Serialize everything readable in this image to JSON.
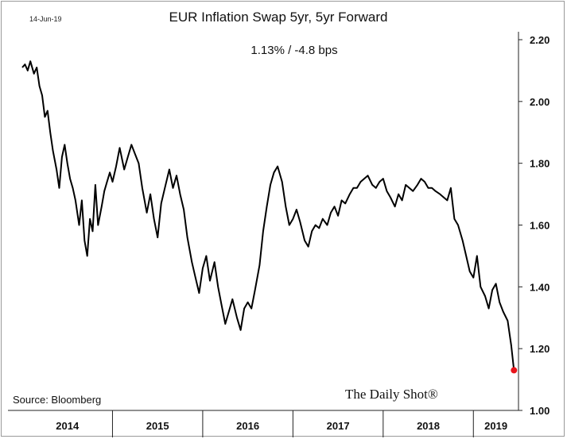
{
  "chart_data": {
    "type": "line",
    "date_stamp": "14-Jun-19",
    "title": "EUR Inflation Swap 5yr, 5yr Forward",
    "subtitle": "1.13%  /  -4.8 bps",
    "source": "Source: Bloomberg",
    "brand": "The Daily Shot®",
    "ylim": [
      1.0,
      2.2
    ],
    "y_ticks": [
      1.0,
      1.2,
      1.4,
      1.6,
      1.8,
      2.0,
      2.2
    ],
    "y_tick_labels": [
      "1.00",
      "1.20",
      "1.40",
      "1.60",
      "1.80",
      "2.00",
      "2.20"
    ],
    "y_axis_side": "right",
    "grid": false,
    "x_labels": [
      "2014",
      "2015",
      "2016",
      "2017",
      "2018",
      "2019"
    ],
    "x": [
      2014.0,
      2014.03,
      2014.06,
      2014.09,
      2014.13,
      2014.16,
      2014.19,
      2014.22,
      2014.25,
      2014.28,
      2014.31,
      2014.34,
      2014.38,
      2014.41,
      2014.44,
      2014.47,
      2014.5,
      2014.53,
      2014.56,
      2014.59,
      2014.63,
      2014.66,
      2014.69,
      2014.72,
      2014.75,
      2014.78,
      2014.81,
      2014.84,
      2014.88,
      2014.91,
      2014.94,
      2014.97,
      2015.0,
      2015.04,
      2015.08,
      2015.13,
      2015.17,
      2015.21,
      2015.25,
      2015.29,
      2015.33,
      2015.38,
      2015.42,
      2015.46,
      2015.5,
      2015.54,
      2015.58,
      2015.63,
      2015.67,
      2015.71,
      2015.75,
      2015.79,
      2015.83,
      2015.88,
      2015.92,
      2015.96,
      2016.0,
      2016.04,
      2016.08,
      2016.13,
      2016.17,
      2016.21,
      2016.25,
      2016.29,
      2016.33,
      2016.38,
      2016.42,
      2016.46,
      2016.5,
      2016.54,
      2016.58,
      2016.63,
      2016.67,
      2016.71,
      2016.75,
      2016.79,
      2016.83,
      2016.88,
      2016.92,
      2016.96,
      2017.0,
      2017.04,
      2017.08,
      2017.13,
      2017.17,
      2017.21,
      2017.25,
      2017.29,
      2017.33,
      2017.38,
      2017.42,
      2017.46,
      2017.5,
      2017.54,
      2017.58,
      2017.63,
      2017.67,
      2017.71,
      2017.75,
      2017.79,
      2017.83,
      2017.88,
      2017.92,
      2017.96,
      2018.0,
      2018.04,
      2018.08,
      2018.13,
      2018.17,
      2018.21,
      2018.25,
      2018.29,
      2018.33,
      2018.38,
      2018.42,
      2018.46,
      2018.5,
      2018.54,
      2018.58,
      2018.63,
      2018.67,
      2018.71,
      2018.75,
      2018.79,
      2018.83,
      2018.88,
      2018.92,
      2018.96,
      2019.0,
      2019.04,
      2019.08,
      2019.13,
      2019.17,
      2019.21,
      2019.25,
      2019.29,
      2019.33,
      2019.38,
      2019.42,
      2019.45
    ],
    "values": [
      2.11,
      2.12,
      2.1,
      2.13,
      2.09,
      2.11,
      2.05,
      2.02,
      1.95,
      1.97,
      1.9,
      1.84,
      1.78,
      1.72,
      1.82,
      1.86,
      1.8,
      1.75,
      1.72,
      1.68,
      1.6,
      1.68,
      1.55,
      1.5,
      1.62,
      1.58,
      1.73,
      1.6,
      1.66,
      1.71,
      1.74,
      1.77,
      1.74,
      1.79,
      1.85,
      1.78,
      1.82,
      1.86,
      1.83,
      1.8,
      1.72,
      1.64,
      1.7,
      1.62,
      1.56,
      1.67,
      1.72,
      1.78,
      1.72,
      1.76,
      1.7,
      1.65,
      1.56,
      1.48,
      1.43,
      1.38,
      1.46,
      1.5,
      1.42,
      1.48,
      1.4,
      1.34,
      1.28,
      1.32,
      1.36,
      1.3,
      1.26,
      1.33,
      1.35,
      1.33,
      1.39,
      1.47,
      1.58,
      1.66,
      1.73,
      1.77,
      1.79,
      1.74,
      1.66,
      1.6,
      1.62,
      1.65,
      1.61,
      1.55,
      1.53,
      1.58,
      1.6,
      1.59,
      1.62,
      1.6,
      1.64,
      1.66,
      1.63,
      1.68,
      1.67,
      1.7,
      1.72,
      1.72,
      1.74,
      1.75,
      1.76,
      1.73,
      1.72,
      1.74,
      1.75,
      1.71,
      1.69,
      1.66,
      1.7,
      1.68,
      1.73,
      1.72,
      1.71,
      1.73,
      1.75,
      1.74,
      1.72,
      1.72,
      1.71,
      1.7,
      1.69,
      1.68,
      1.72,
      1.62,
      1.6,
      1.55,
      1.5,
      1.45,
      1.43,
      1.5,
      1.4,
      1.37,
      1.33,
      1.39,
      1.41,
      1.35,
      1.32,
      1.29,
      1.21,
      1.13
    ],
    "line_color": "#000000",
    "end_marker_color": "#e8141b"
  }
}
